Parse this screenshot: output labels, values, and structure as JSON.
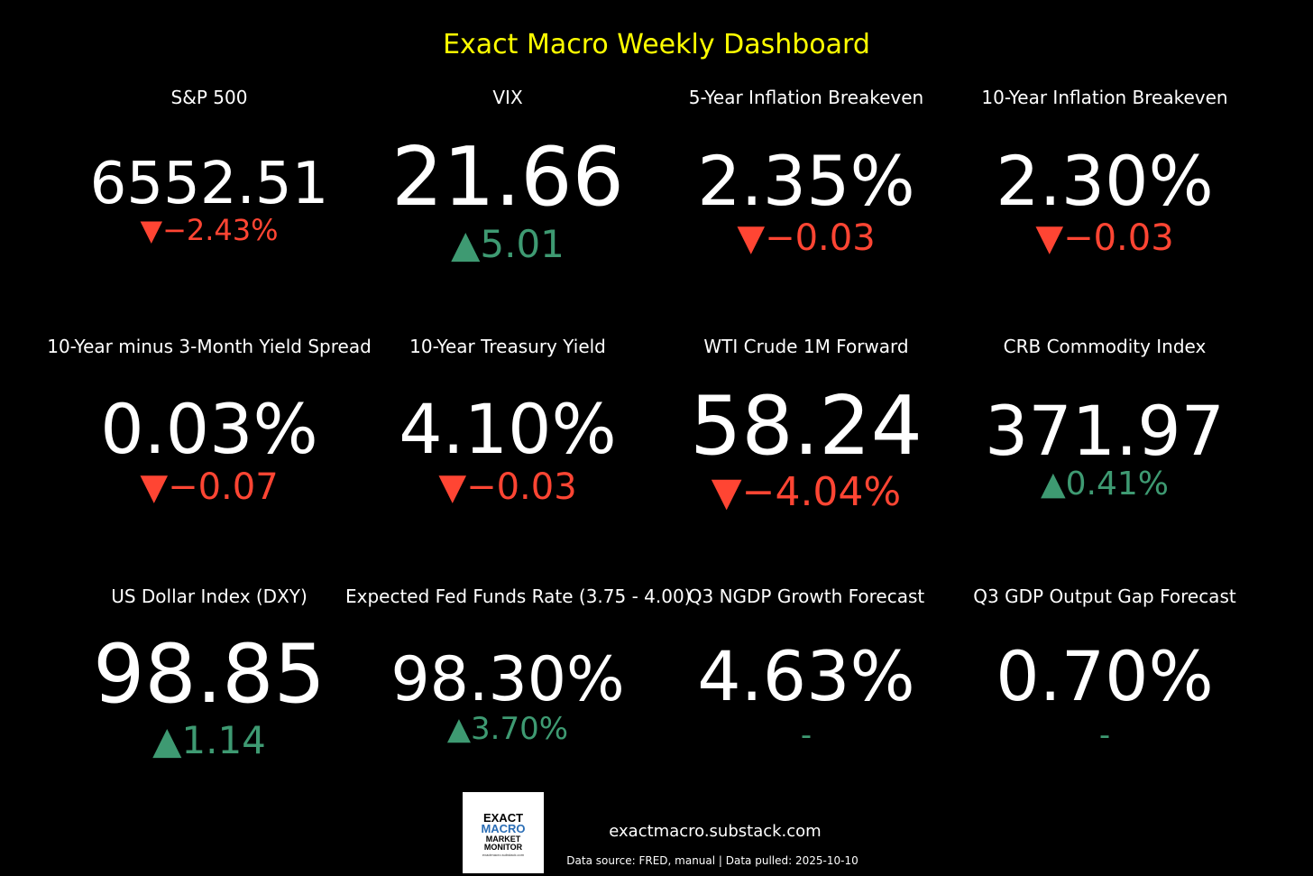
{
  "title": "Exact Macro Weekly Dashboard",
  "colors": {
    "background": "#000000",
    "title": "#ffff00",
    "value": "#ffffff",
    "up": "#3e9a72",
    "down": "#ff4533",
    "neutral": "#3e9a72"
  },
  "chart_data": {
    "type": "table",
    "title": "Exact Macro Weekly Dashboard",
    "metrics": [
      {
        "label": "S&P 500",
        "value": "6552.51",
        "change": "▼−2.43%",
        "direction": "down"
      },
      {
        "label": "VIX",
        "value": "21.66",
        "change": "▲5.01",
        "direction": "up"
      },
      {
        "label": "5-Year Inflation Breakeven",
        "value": "2.35%",
        "change": "▼−0.03",
        "direction": "down"
      },
      {
        "label": "10-Year Inflation Breakeven",
        "value": "2.30%",
        "change": "▼−0.03",
        "direction": "down"
      },
      {
        "label": "10-Year minus 3-Month Yield Spread",
        "value": "0.03%",
        "change": "▼−0.07",
        "direction": "down"
      },
      {
        "label": "10-Year Treasury Yield",
        "value": "4.10%",
        "change": "▼−0.03",
        "direction": "down"
      },
      {
        "label": "WTI Crude 1M Forward",
        "value": "58.24",
        "change": "▼−4.04%",
        "direction": "down"
      },
      {
        "label": "CRB Commodity Index",
        "value": "371.97",
        "change": "▲0.41%",
        "direction": "up"
      },
      {
        "label": "US Dollar Index (DXY)",
        "value": "98.85",
        "change": "▲1.14",
        "direction": "up"
      },
      {
        "label": "Expected Fed Funds Rate (3.75 - 4.00)",
        "value": "98.30%",
        "change": "▲3.70%",
        "direction": "up"
      },
      {
        "label": "Q3 NGDP Growth Forecast",
        "value": "4.63%",
        "change": "-",
        "direction": "neutral"
      },
      {
        "label": "Q3 GDP Output Gap Forecast",
        "value": "0.70%",
        "change": "-",
        "direction": "neutral"
      }
    ]
  },
  "logo": {
    "line1": "EXACT",
    "line2": "MACRO",
    "line3": "MARKET",
    "line4": "MONITOR",
    "line5": "exactmacro.substack.com"
  },
  "footer": {
    "site": "exactmacro.substack.com",
    "source": "Data source: FRED, manual | Data pulled: 2025-10-10"
  }
}
